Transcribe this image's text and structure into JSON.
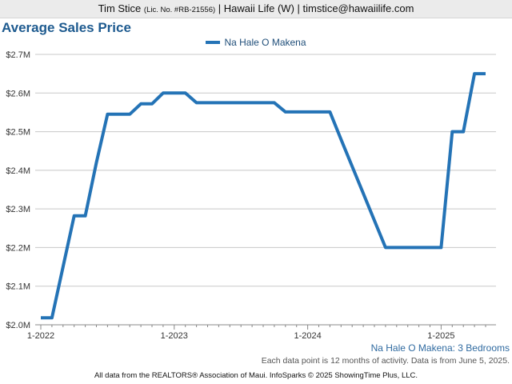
{
  "header": {
    "agent_name": "Tim Stice",
    "license": "(Lic. No. #RB-21556)",
    "rest": "| Hawaii Life (W) | timstice@hawaiilife.com"
  },
  "colors": {
    "series": "#2473b6",
    "title": "#1d5a8f",
    "grid": "#c8c8c8"
  },
  "chart_data": {
    "type": "line",
    "title": "Average Sales Price",
    "subtitle": "Na Hale O Makena: 3 Bedrooms",
    "xlabel": "",
    "ylabel": "",
    "legend_position": "top-center",
    "grid": true,
    "ylim": [
      2000000,
      2700000
    ],
    "yticks": [
      {
        "value": 2000000,
        "label": "$2.0M"
      },
      {
        "value": 2100000,
        "label": "$2.1M"
      },
      {
        "value": 2200000,
        "label": "$2.2M"
      },
      {
        "value": 2300000,
        "label": "$2.3M"
      },
      {
        "value": 2400000,
        "label": "$2.4M"
      },
      {
        "value": 2500000,
        "label": "$2.5M"
      },
      {
        "value": 2600000,
        "label": "$2.6M"
      },
      {
        "value": 2700000,
        "label": "$2.7M"
      }
    ],
    "xticks": [
      "1-2022",
      "1-2023",
      "1-2024",
      "1-2025"
    ],
    "x": [
      "1-2022",
      "2-2022",
      "3-2022",
      "4-2022",
      "5-2022",
      "6-2022",
      "7-2022",
      "8-2022",
      "9-2022",
      "10-2022",
      "11-2022",
      "12-2022",
      "1-2023",
      "2-2023",
      "3-2023",
      "4-2023",
      "5-2023",
      "6-2023",
      "7-2023",
      "8-2023",
      "9-2023",
      "10-2023",
      "11-2023",
      "12-2023",
      "1-2024",
      "2-2024",
      "3-2024",
      "4-2024",
      "5-2024",
      "6-2024",
      "7-2024",
      "8-2024",
      "9-2024",
      "10-2024",
      "11-2024",
      "12-2024",
      "1-2025",
      "2-2025",
      "3-2025",
      "4-2025",
      "5-2025"
    ],
    "series": [
      {
        "name": "Na Hale O Makena",
        "values": [
          2018000,
          2018000,
          2150000,
          2282000,
          2282000,
          2420000,
          2545000,
          2545000,
          2545000,
          2572000,
          2572000,
          2600000,
          2600000,
          2600000,
          2575000,
          2575000,
          2575000,
          2575000,
          2575000,
          2575000,
          2575000,
          2575000,
          2551000,
          2551000,
          2551000,
          2551000,
          2551000,
          2480000,
          2410000,
          2340000,
          2270000,
          2200000,
          2200000,
          2200000,
          2200000,
          2200000,
          2200000,
          2500000,
          2500000,
          2650000,
          2650000
        ]
      }
    ]
  },
  "note": "Each data point is 12 months of activity. Data is from June 5, 2025.",
  "footer": "All data from the REALTORS® Association of Maui. InfoSparks © 2025 ShowingTime Plus, LLC."
}
